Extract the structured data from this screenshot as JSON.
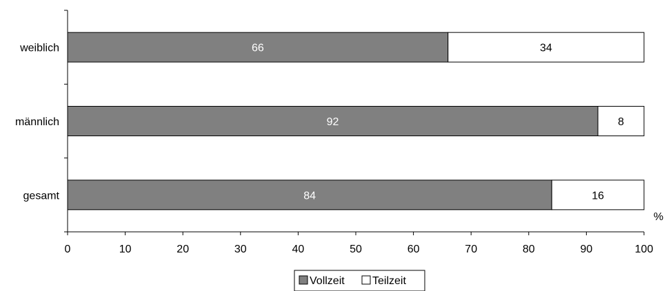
{
  "chart_data": {
    "type": "bar",
    "orientation": "horizontal",
    "stacked": true,
    "categories": [
      "weiblich",
      "männlich",
      "gesamt"
    ],
    "series": [
      {
        "name": "Vollzeit",
        "values": [
          66,
          92,
          84
        ],
        "color": "#808080",
        "label_color": "#ffffff"
      },
      {
        "name": "Teilzeit",
        "values": [
          34,
          8,
          16
        ],
        "color": "#ffffff",
        "label_color": "#000000"
      }
    ],
    "x_unit": "%",
    "xlim": [
      0,
      100
    ],
    "xticks": [
      "0",
      "10",
      "20",
      "30",
      "40",
      "50",
      "60",
      "70",
      "80",
      "90",
      "100"
    ],
    "grid": false,
    "legend_position": "bottom"
  }
}
